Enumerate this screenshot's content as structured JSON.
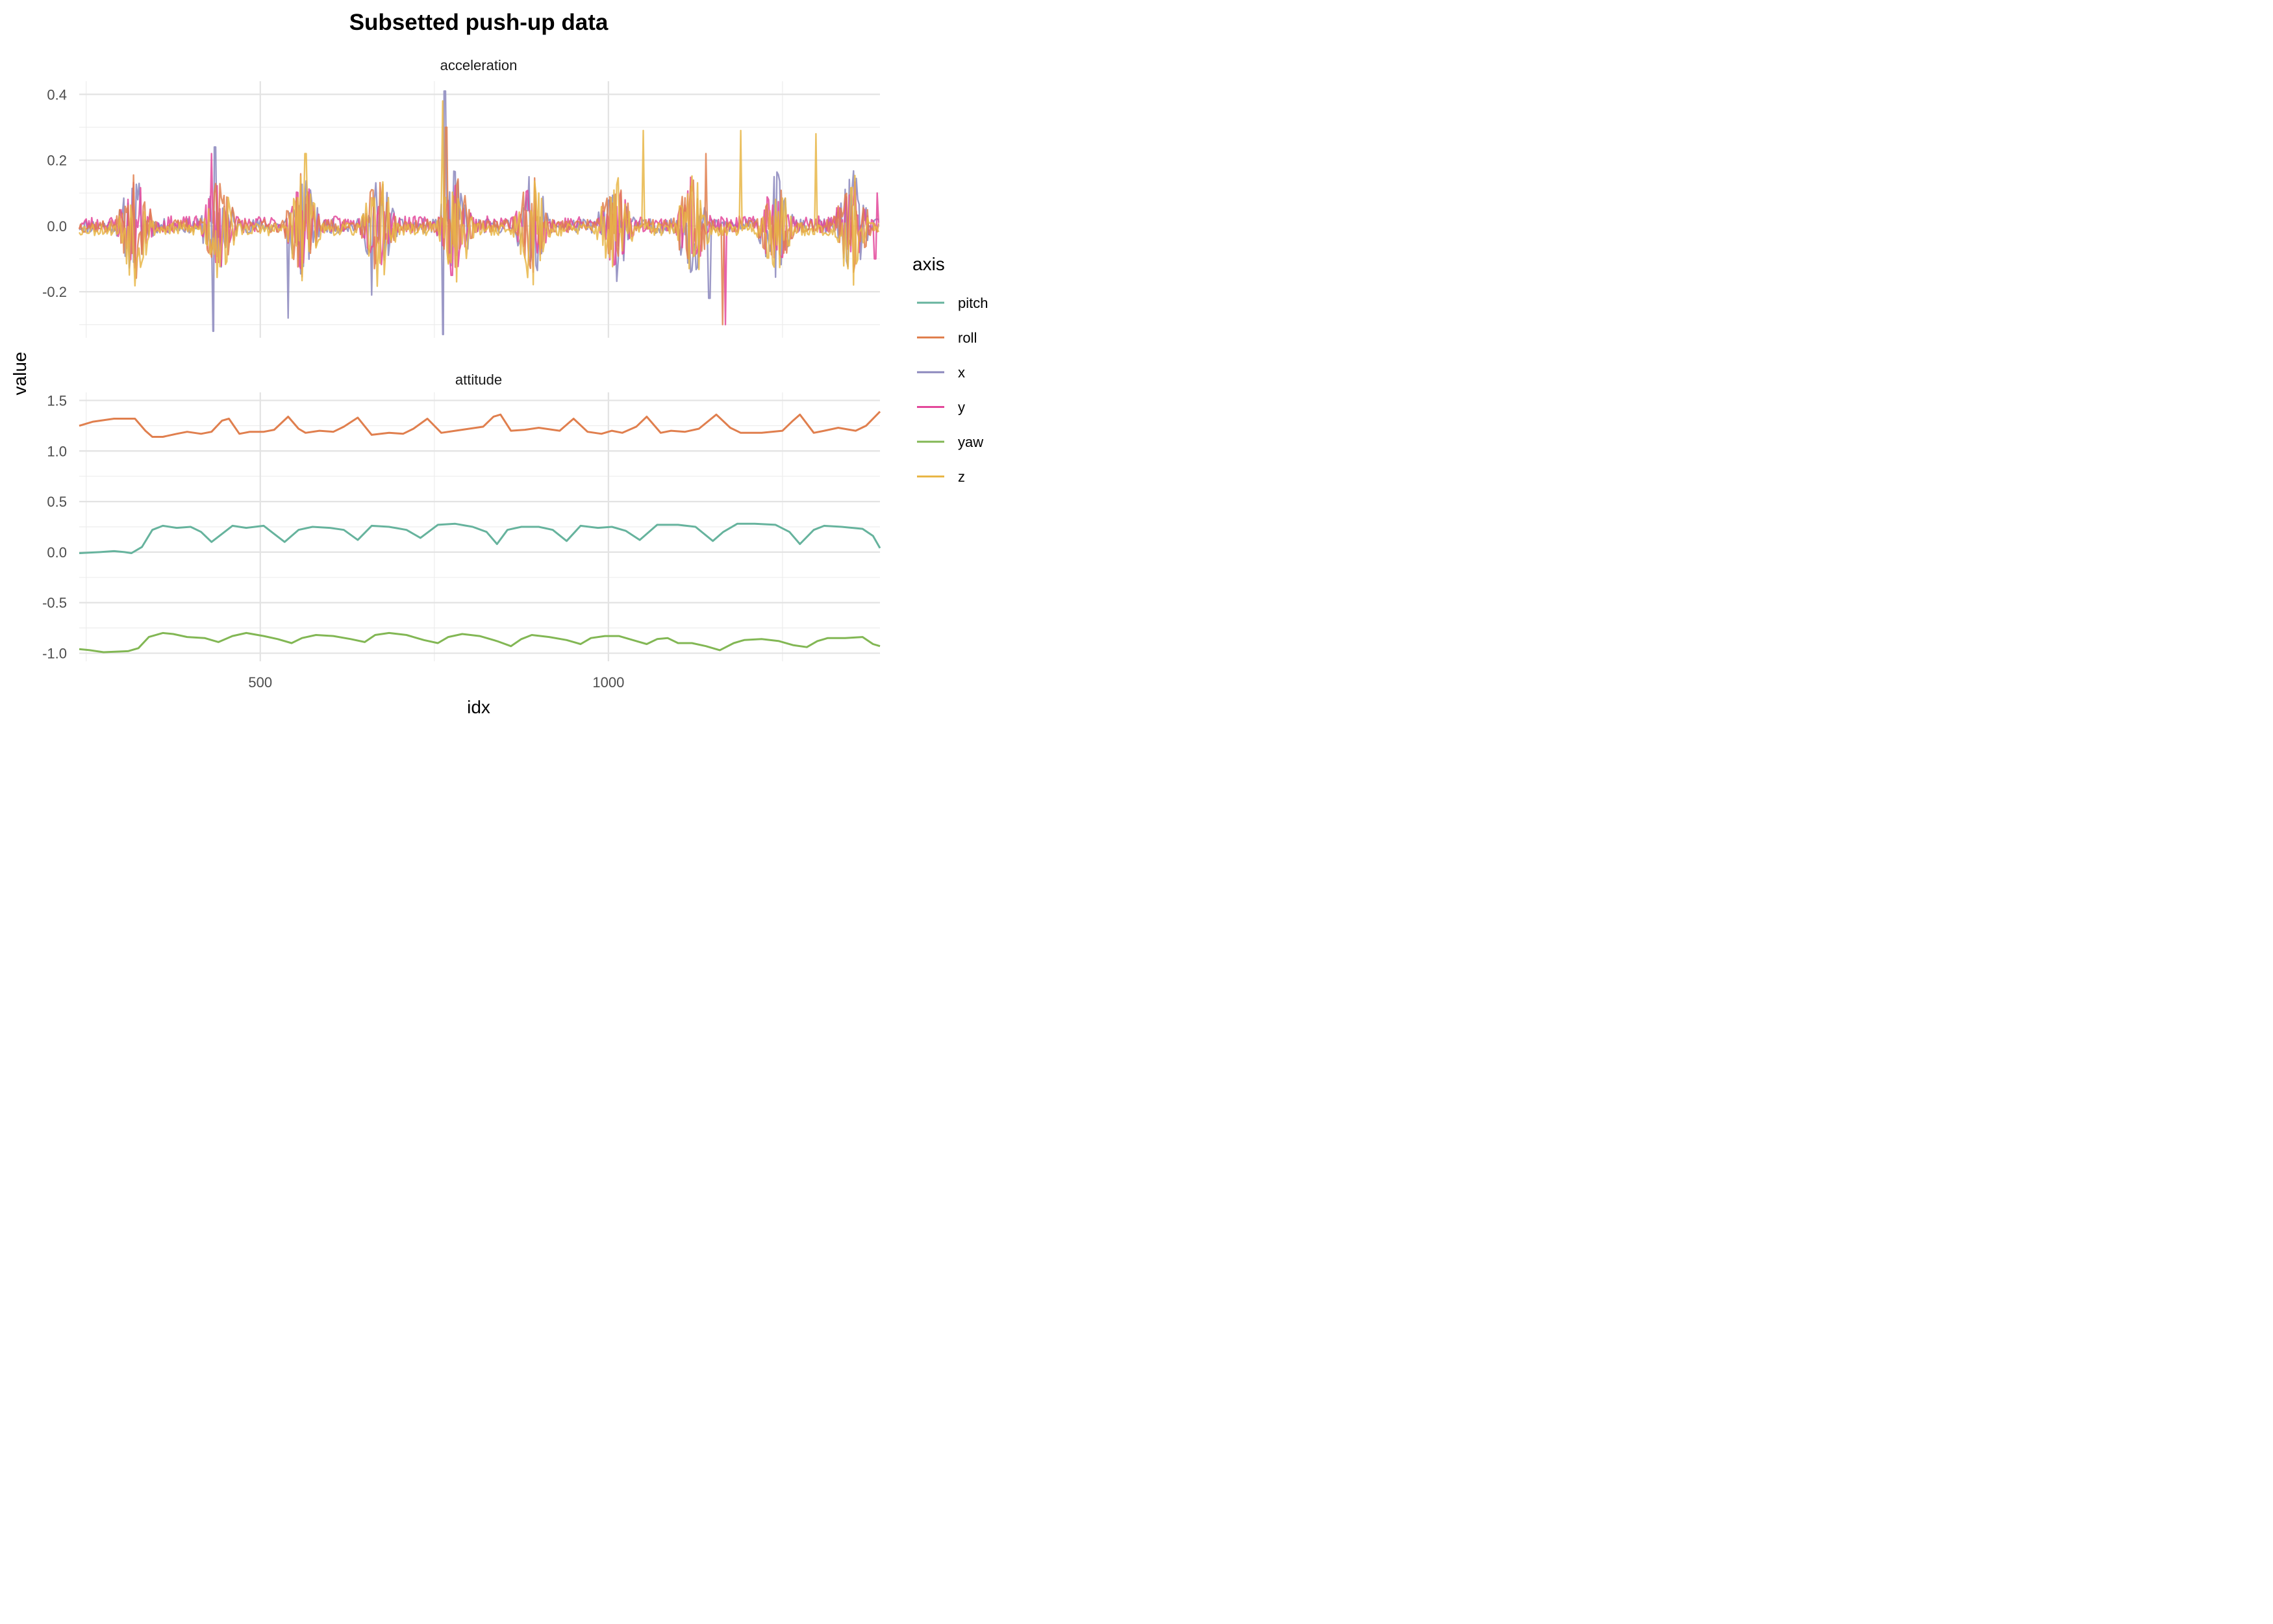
{
  "chart_data": {
    "type": "line",
    "title": "Subsetted push-up data",
    "xlabel": "idx",
    "ylabel": "value",
    "legend_title": "axis",
    "legend_position": "right",
    "grid": true,
    "xlim": [
      240,
      1390
    ],
    "x_ticks": [
      500,
      1000
    ],
    "colors": {
      "pitch": "#66b39d",
      "roll": "#e07f4e",
      "x": "#8b87bd",
      "y": "#e3479a",
      "yaw": "#82b754",
      "z": "#e8b647"
    },
    "series_order": [
      "pitch",
      "roll",
      "x",
      "y",
      "yaw",
      "z"
    ],
    "panels": [
      {
        "label": "acceleration",
        "ylim": [
          -0.34,
          0.44
        ],
        "y_ticks": [
          -0.2,
          0.0,
          0.2,
          0.4
        ],
        "y_tick_labels": [
          "-0.2",
          "0.0",
          "0.2",
          "0.4"
        ],
        "pushup_centers": [
          320,
          440,
          560,
          670,
          780,
          890,
          1010,
          1120,
          1240,
          1350
        ],
        "series": [
          {
            "name": "x",
            "baseline": 0.0,
            "noise": 0.022,
            "burst": 0.16,
            "seed": 11,
            "peaks": [
              [
                435,
                0.24
              ],
              [
                433,
                -0.32
              ],
              [
                765,
                0.41
              ],
              [
                763,
                -0.33
              ],
              [
                540,
                -0.28
              ],
              [
                1145,
                -0.22
              ],
              [
                660,
                -0.21
              ]
            ]
          },
          {
            "name": "y",
            "baseline": 0.005,
            "noise": 0.025,
            "burst": 0.13,
            "seed": 23,
            "peaks": [
              [
                1168,
                -0.3
              ],
              [
                1386,
                0.1
              ],
              [
                1383,
                -0.1
              ],
              [
                430,
                0.22
              ],
              [
                775,
                -0.15
              ]
            ]
          },
          {
            "name": "roll",
            "baseline": 0.0,
            "noise": 0.02,
            "burst": 0.15,
            "seed": 37,
            "peaks": [
              [
                1164,
                -0.3
              ],
              [
                767,
                0.3
              ],
              [
                1140,
                0.22
              ]
            ]
          },
          {
            "name": "z",
            "baseline": -0.01,
            "noise": 0.02,
            "burst": 0.17,
            "seed": 53,
            "peaks": [
              [
                762,
                0.38
              ],
              [
                565,
                0.22
              ],
              [
                1190,
                0.29
              ],
              [
                1050,
                0.29
              ],
              [
                1298,
                0.28
              ]
            ]
          }
        ]
      },
      {
        "label": "attitude",
        "ylim": [
          -1.08,
          1.58
        ],
        "y_ticks": [
          -1.0,
          -0.5,
          0.0,
          0.5,
          1.0,
          1.5
        ],
        "y_tick_labels": [
          "-1.0",
          "-0.5",
          "0.0",
          "0.5",
          "1.0",
          "1.5"
        ],
        "series": [
          {
            "name": "roll",
            "points": [
              [
                240,
                1.25
              ],
              [
                260,
                1.29
              ],
              [
                290,
                1.32
              ],
              [
                320,
                1.32
              ],
              [
                335,
                1.2
              ],
              [
                345,
                1.14
              ],
              [
                360,
                1.14
              ],
              [
                380,
                1.17
              ],
              [
                395,
                1.19
              ],
              [
                415,
                1.17
              ],
              [
                430,
                1.19
              ],
              [
                445,
                1.3
              ],
              [
                455,
                1.32
              ],
              [
                470,
                1.17
              ],
              [
                485,
                1.19
              ],
              [
                505,
                1.19
              ],
              [
                520,
                1.21
              ],
              [
                540,
                1.34
              ],
              [
                555,
                1.22
              ],
              [
                565,
                1.18
              ],
              [
                585,
                1.2
              ],
              [
                605,
                1.19
              ],
              [
                620,
                1.24
              ],
              [
                640,
                1.33
              ],
              [
                660,
                1.16
              ],
              [
                685,
                1.18
              ],
              [
                705,
                1.17
              ],
              [
                720,
                1.22
              ],
              [
                740,
                1.32
              ],
              [
                760,
                1.18
              ],
              [
                780,
                1.2
              ],
              [
                800,
                1.22
              ],
              [
                820,
                1.24
              ],
              [
                835,
                1.34
              ],
              [
                845,
                1.36
              ],
              [
                860,
                1.2
              ],
              [
                880,
                1.21
              ],
              [
                900,
                1.23
              ],
              [
                930,
                1.2
              ],
              [
                950,
                1.32
              ],
              [
                970,
                1.19
              ],
              [
                990,
                1.17
              ],
              [
                1005,
                1.2
              ],
              [
                1020,
                1.18
              ],
              [
                1040,
                1.24
              ],
              [
                1055,
                1.34
              ],
              [
                1075,
                1.18
              ],
              [
                1090,
                1.2
              ],
              [
                1110,
                1.19
              ],
              [
                1130,
                1.22
              ],
              [
                1155,
                1.36
              ],
              [
                1175,
                1.23
              ],
              [
                1190,
                1.18
              ],
              [
                1220,
                1.18
              ],
              [
                1250,
                1.2
              ],
              [
                1265,
                1.3
              ],
              [
                1275,
                1.36
              ],
              [
                1295,
                1.18
              ],
              [
                1310,
                1.2
              ],
              [
                1330,
                1.23
              ],
              [
                1355,
                1.2
              ],
              [
                1370,
                1.25
              ],
              [
                1390,
                1.39
              ]
            ]
          },
          {
            "name": "pitch",
            "points": [
              [
                240,
                -0.01
              ],
              [
                270,
                0.0
              ],
              [
                290,
                0.01
              ],
              [
                305,
                0.0
              ],
              [
                315,
                -0.01
              ],
              [
                330,
                0.05
              ],
              [
                345,
                0.22
              ],
              [
                360,
                0.26
              ],
              [
                380,
                0.24
              ],
              [
                400,
                0.25
              ],
              [
                415,
                0.2
              ],
              [
                430,
                0.1
              ],
              [
                445,
                0.18
              ],
              [
                460,
                0.26
              ],
              [
                480,
                0.24
              ],
              [
                505,
                0.26
              ],
              [
                520,
                0.18
              ],
              [
                535,
                0.1
              ],
              [
                555,
                0.22
              ],
              [
                575,
                0.25
              ],
              [
                600,
                0.24
              ],
              [
                620,
                0.22
              ],
              [
                640,
                0.12
              ],
              [
                660,
                0.26
              ],
              [
                685,
                0.25
              ],
              [
                710,
                0.22
              ],
              [
                730,
                0.14
              ],
              [
                755,
                0.27
              ],
              [
                780,
                0.28
              ],
              [
                805,
                0.25
              ],
              [
                825,
                0.2
              ],
              [
                840,
                0.08
              ],
              [
                855,
                0.22
              ],
              [
                875,
                0.25
              ],
              [
                900,
                0.25
              ],
              [
                920,
                0.22
              ],
              [
                940,
                0.11
              ],
              [
                960,
                0.26
              ],
              [
                985,
                0.24
              ],
              [
                1005,
                0.25
              ],
              [
                1025,
                0.21
              ],
              [
                1045,
                0.12
              ],
              [
                1070,
                0.27
              ],
              [
                1100,
                0.27
              ],
              [
                1125,
                0.25
              ],
              [
                1150,
                0.11
              ],
              [
                1165,
                0.2
              ],
              [
                1185,
                0.28
              ],
              [
                1210,
                0.28
              ],
              [
                1240,
                0.27
              ],
              [
                1260,
                0.2
              ],
              [
                1275,
                0.08
              ],
              [
                1295,
                0.22
              ],
              [
                1310,
                0.26
              ],
              [
                1335,
                0.25
              ],
              [
                1365,
                0.23
              ],
              [
                1380,
                0.16
              ],
              [
                1390,
                0.04
              ]
            ]
          },
          {
            "name": "yaw",
            "points": [
              [
                240,
                -0.96
              ],
              [
                255,
                -0.97
              ],
              [
                275,
                -0.99
              ],
              [
                310,
                -0.98
              ],
              [
                325,
                -0.95
              ],
              [
                340,
                -0.84
              ],
              [
                360,
                -0.8
              ],
              [
                375,
                -0.81
              ],
              [
                395,
                -0.84
              ],
              [
                420,
                -0.85
              ],
              [
                440,
                -0.89
              ],
              [
                460,
                -0.83
              ],
              [
                480,
                -0.8
              ],
              [
                505,
                -0.83
              ],
              [
                525,
                -0.86
              ],
              [
                545,
                -0.9
              ],
              [
                560,
                -0.85
              ],
              [
                580,
                -0.82
              ],
              [
                605,
                -0.83
              ],
              [
                630,
                -0.86
              ],
              [
                650,
                -0.89
              ],
              [
                665,
                -0.82
              ],
              [
                685,
                -0.8
              ],
              [
                710,
                -0.82
              ],
              [
                735,
                -0.87
              ],
              [
                755,
                -0.9
              ],
              [
                770,
                -0.84
              ],
              [
                790,
                -0.81
              ],
              [
                815,
                -0.83
              ],
              [
                840,
                -0.88
              ],
              [
                860,
                -0.93
              ],
              [
                875,
                -0.86
              ],
              [
                890,
                -0.82
              ],
              [
                915,
                -0.84
              ],
              [
                940,
                -0.87
              ],
              [
                960,
                -0.91
              ],
              [
                975,
                -0.85
              ],
              [
                995,
                -0.83
              ],
              [
                1015,
                -0.83
              ],
              [
                1035,
                -0.87
              ],
              [
                1055,
                -0.91
              ],
              [
                1070,
                -0.86
              ],
              [
                1085,
                -0.85
              ],
              [
                1100,
                -0.9
              ],
              [
                1120,
                -0.9
              ],
              [
                1140,
                -0.93
              ],
              [
                1160,
                -0.97
              ],
              [
                1180,
                -0.9
              ],
              [
                1195,
                -0.87
              ],
              [
                1220,
                -0.86
              ],
              [
                1245,
                -0.88
              ],
              [
                1265,
                -0.92
              ],
              [
                1285,
                -0.94
              ],
              [
                1300,
                -0.88
              ],
              [
                1315,
                -0.85
              ],
              [
                1340,
                -0.85
              ],
              [
                1365,
                -0.84
              ],
              [
                1380,
                -0.91
              ],
              [
                1390,
                -0.93
              ]
            ]
          }
        ]
      }
    ]
  }
}
